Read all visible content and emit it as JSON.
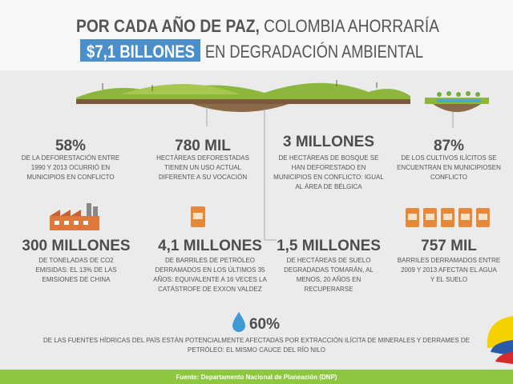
{
  "header": {
    "title_line1": [
      "POR CADA AÑO DE PAZ,",
      " COLOMBIA AHORRARÍA"
    ],
    "title_line2": [
      "$7,1 BILLONES",
      "EN DEGRADACIÓN AMBIENTAL"
    ]
  },
  "stats": [
    {
      "value": "58%",
      "lines": [
        "DE LA DEFORESTACIÓN ENTRE",
        "1990 Y 2013 OCURRIÓ EN",
        "MUNICIPIOS EN CONFLICTO"
      ]
    },
    {
      "value": "780 MIL",
      "lines": [
        "HECTÁREAS DEFORESTADAS",
        "TIENEN UN USO ACTUAL",
        "DIFERENTE A SU VOCACIÓN"
      ]
    },
    {
      "value": "3 MILLONES",
      "lines": [
        "DE HECTÁREAS DE BOSQUE SE",
        "HAN DEFORESTADO EN",
        "MUNICIPIOS EN CONFLICTO: IGUAL",
        "AL ÁREA DE BÉLGICA"
      ]
    },
    {
      "value": "87%",
      "lines": [
        "DE LOS CULTIVOS ILÍCITOS SE",
        "ENCUENTRAN EN MUNICIPIOSEN",
        "CONFLICTO"
      ]
    },
    {
      "value": "300 MILLONES",
      "lines": [
        "DE TONELADAS DE CO2",
        "EMISIDAS: EL 13% DE LAS",
        "EMISIONES DE CHINA"
      ]
    },
    {
      "value": "4,1 MILLONES",
      "lines": [
        "DE BARRILES DE PETRÓLEO",
        "DERRAMADOS EN LOS ÚLTIMOS 35",
        "AÑOS: EQUIVALENTE A 16 VECES LA",
        "CATÁSTROFE DE EXXON VALDEZ"
      ]
    },
    {
      "value": "1,5 MILLONES",
      "lines": [
        "DE HECTÁREAS DE SUELO",
        "DEGRADADAS TOMARÁN, AL",
        "MENOS, 20 AÑOS EN",
        "RECUPERARSE"
      ]
    },
    {
      "value": "757 MIL",
      "lines": [
        "BARRILES DERRAMADOS ENTRE",
        "2009 Y 2013 AFECTAN EL AGUA",
        "Y EL SUELO"
      ]
    },
    {
      "value": "60%",
      "lines": [
        "DE LAS FUENTES HÍDRICAS DEL PAÍS ESTÁN POTENCIALMENTE AFECTADAS POR EXTRACCIÓN ILÍCITA DE MINERALES Y DERRAMES DE",
        "PETRÓLEO: EL MISMO CAUCE DEL RÍO NILO"
      ]
    }
  ],
  "footer": {
    "source": "Fuente: Departamento Nacional de Planeación (DNP)"
  }
}
